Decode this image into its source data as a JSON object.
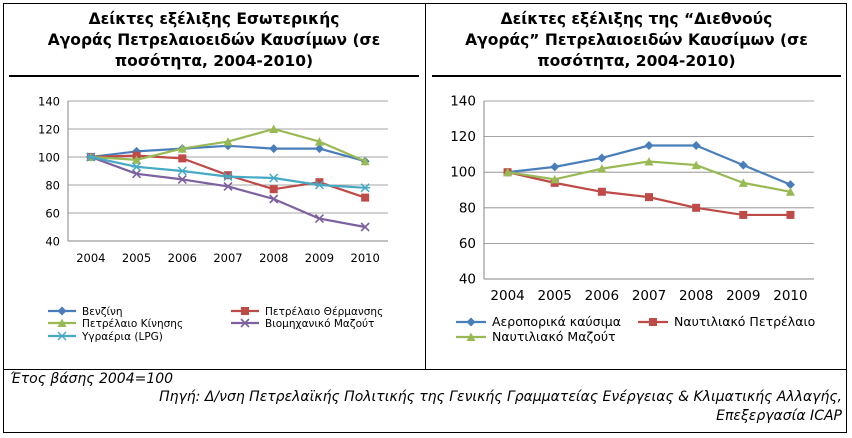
{
  "left_panel": {
    "title": "Δείκτες εξέλιξης Εσωτερικής\nΑγοράς Πετρελαιοειδών Καυσίμων (σε\nποσότητα, 2004-2010)"
  },
  "right_panel": {
    "title": "Δείκτες εξέλιξης της “Διεθνούς\nΑγοράς” Πετρελαιοειδών Καυσίμων (σε\nποσότητα, 2004-2010)"
  },
  "footer": {
    "base_year": "Έτος βάσης 2004=100",
    "source": "Πηγή:  Δ/νση Πετρελαϊκής Πολιτικής της Γενικής Γραμματείας Ενέργειας & Κλιματικής Αλλαγής,",
    "credit": "Επεξεργασία ICAP"
  },
  "chart_data": [
    {
      "type": "line",
      "title": "Δείκτες εξέλιξης Εσωτερικής Αγοράς Πετρελαιοειδών Καυσίμων (σε ποσότητα, 2004-2010)",
      "x": [
        "2004",
        "2005",
        "2006",
        "2007",
        "2008",
        "2009",
        "2010"
      ],
      "ylim": [
        40,
        140
      ],
      "yticks": [
        40,
        60,
        80,
        100,
        120,
        140
      ],
      "grid": true,
      "legend_position": "bottom",
      "series": [
        {
          "name": "Βενζίνη",
          "color": "#4a7ebb",
          "marker": "diamond",
          "values": [
            100,
            104,
            106,
            108,
            106,
            106,
            97
          ]
        },
        {
          "name": "Πετρέλαιο Θέρμανσης",
          "color": "#be4b48",
          "marker": "square",
          "values": [
            100,
            101,
            99,
            87,
            77,
            82,
            71
          ]
        },
        {
          "name": "Πετρέλαιο Κίνησης",
          "color": "#98b954",
          "marker": "triangle",
          "values": [
            100,
            98,
            106,
            111,
            120,
            111,
            97
          ]
        },
        {
          "name": "Βιομηχανικό Μαζούτ",
          "color": "#7d60a0",
          "marker": "x",
          "values": [
            100,
            88,
            84,
            79,
            70,
            56,
            50
          ]
        },
        {
          "name": "Υγραέρια (LPG)",
          "color": "#46aac5",
          "marker": "star",
          "values": [
            100,
            93,
            90,
            86,
            85,
            80,
            78
          ]
        }
      ]
    },
    {
      "type": "line",
      "title": "Δείκτες εξέλιξης της “Διεθνούς Αγοράς” Πετρελαιοειδών Καυσίμων (σε ποσότητα, 2004-2010)",
      "x": [
        "2004",
        "2005",
        "2006",
        "2007",
        "2008",
        "2009",
        "2010"
      ],
      "ylim": [
        40,
        140
      ],
      "yticks": [
        40,
        60,
        80,
        100,
        120,
        140
      ],
      "grid": true,
      "legend_position": "bottom",
      "series": [
        {
          "name": "Αεροπορικά καύσιμα",
          "color": "#4a7ebb",
          "marker": "diamond",
          "values": [
            100,
            103,
            108,
            115,
            115,
            104,
            93
          ]
        },
        {
          "name": "Ναυτιλιακό Πετρέλαιο",
          "color": "#be4b48",
          "marker": "square",
          "values": [
            100,
            94,
            89,
            86,
            80,
            76,
            76
          ]
        },
        {
          "name": "Ναυτιλιακό Μαζούτ",
          "color": "#98b954",
          "marker": "triangle",
          "values": [
            100,
            96,
            102,
            106,
            104,
            94,
            89
          ]
        }
      ]
    }
  ]
}
